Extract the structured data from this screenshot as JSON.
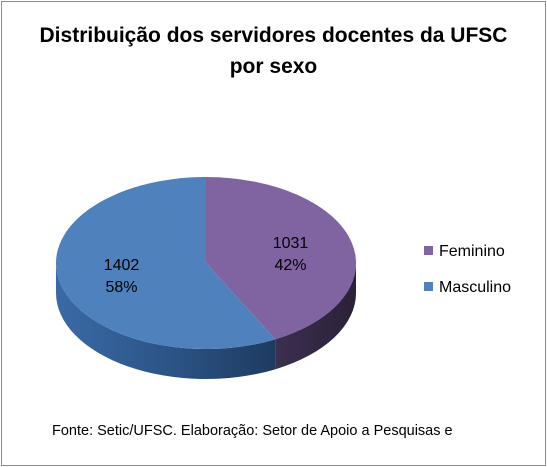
{
  "chart_data": {
    "type": "pie",
    "title": "Distribuição dos servidores docentes da UFSC por sexo",
    "slices": [
      {
        "label": "Feminino",
        "value": 1031,
        "percent_label": "42%",
        "color": "#8064A2"
      },
      {
        "label": "Masculino",
        "value": 1402,
        "percent_label": "58%",
        "color": "#4F81BD"
      }
    ],
    "style": "3d",
    "legend_position": "right",
    "data_labels": "value and percent"
  },
  "footer": {
    "source": "Fonte: Setic/UFSC. Elaboração: Setor de Apoio a Pesquisas e"
  }
}
